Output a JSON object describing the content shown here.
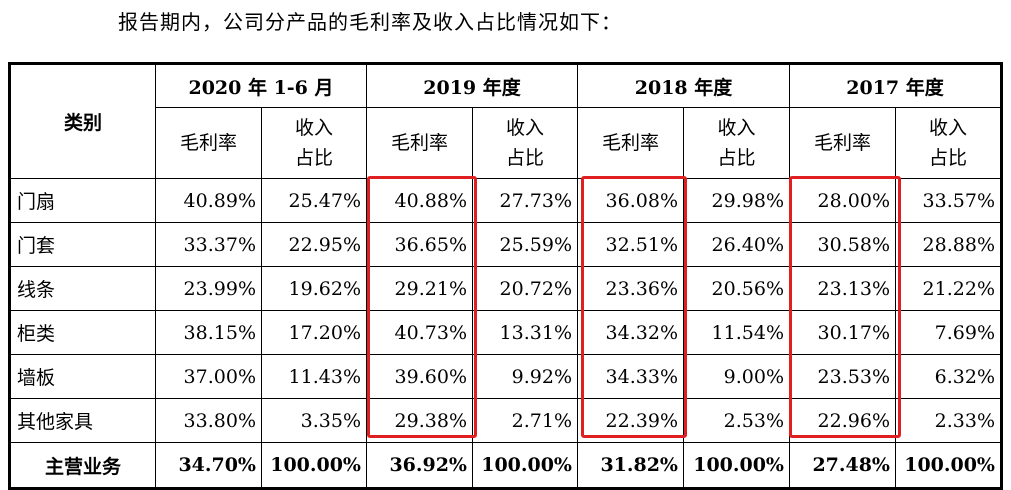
{
  "intro": "报告期内，公司分产品的毛利率及收入占比情况如下：",
  "header": {
    "category": "类别",
    "periods": [
      "2020 年 1-6 月",
      "2019 年度",
      "2018 年度",
      "2017 年度"
    ],
    "margin_label": "毛利率",
    "share_line1": "收入",
    "share_line2": "占比"
  },
  "rows": [
    {
      "name": "门扇",
      "values": [
        "40.89%",
        "25.47%",
        "40.88%",
        "27.73%",
        "36.08%",
        "29.98%",
        "28.00%",
        "33.57%"
      ]
    },
    {
      "name": "门套",
      "values": [
        "33.37%",
        "22.95%",
        "36.65%",
        "25.59%",
        "32.51%",
        "26.40%",
        "30.58%",
        "28.88%"
      ]
    },
    {
      "name": "线条",
      "values": [
        "23.99%",
        "19.62%",
        "29.21%",
        "20.72%",
        "23.36%",
        "20.56%",
        "23.13%",
        "21.22%"
      ]
    },
    {
      "name": "柜类",
      "values": [
        "38.15%",
        "17.20%",
        "40.73%",
        "13.31%",
        "34.32%",
        "11.54%",
        "30.17%",
        "7.69%"
      ]
    },
    {
      "name": "墙板",
      "values": [
        "37.00%",
        "11.43%",
        "39.60%",
        "9.92%",
        "34.33%",
        "9.00%",
        "23.53%",
        "6.32%"
      ]
    },
    {
      "name": "其他家具",
      "values": [
        "33.80%",
        "3.35%",
        "29.38%",
        "2.71%",
        "22.39%",
        "2.53%",
        "22.96%",
        "2.33%"
      ]
    }
  ],
  "total": {
    "name": "主营业务",
    "values": [
      "34.70%",
      "100.00%",
      "36.92%",
      "100.00%",
      "31.82%",
      "100.00%",
      "27.48%",
      "100.00%"
    ]
  },
  "highlight_color": "#e02020"
}
